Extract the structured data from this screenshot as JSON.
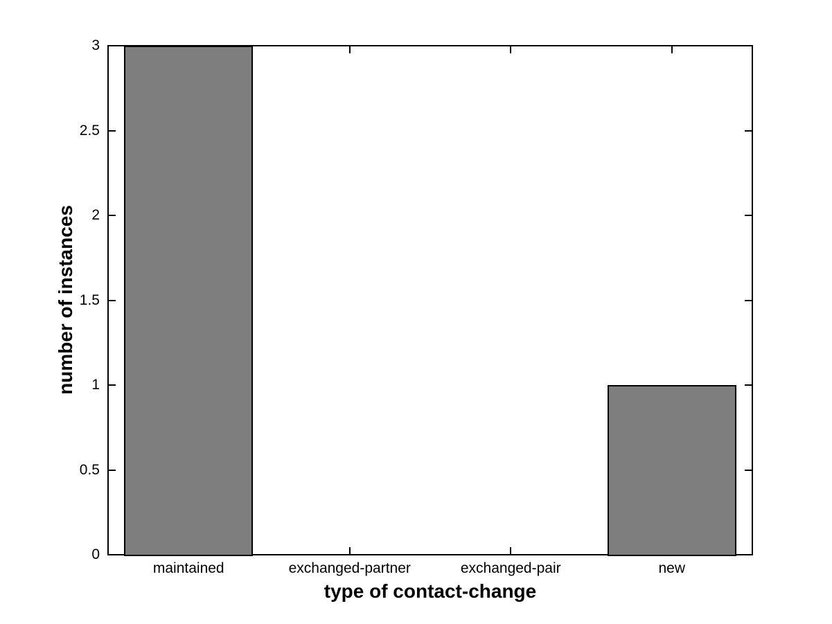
{
  "figure": {
    "background": "#ffffff"
  },
  "chart_data": {
    "type": "bar",
    "categories": [
      "maintained",
      "exchanged-partner",
      "exchanged-pair",
      "new"
    ],
    "values": [
      3,
      0,
      0,
      1
    ],
    "title": "",
    "xlabel": "type of contact-change",
    "ylabel": "number of instances",
    "ylim": [
      0,
      3
    ],
    "yticks": [
      0,
      0.5,
      1,
      1.5,
      2,
      2.5,
      3
    ],
    "ytick_labels": [
      "0",
      "0.5",
      "1",
      "1.5",
      "2",
      "2.5",
      "3"
    ],
    "grid": false,
    "legend_position": "none",
    "bar_width_fraction": 0.8,
    "bar_color": "#7e7e7e",
    "bar_edge_color": "#000000",
    "axis_color": "#000000",
    "tick_direction": "in",
    "box": true
  }
}
